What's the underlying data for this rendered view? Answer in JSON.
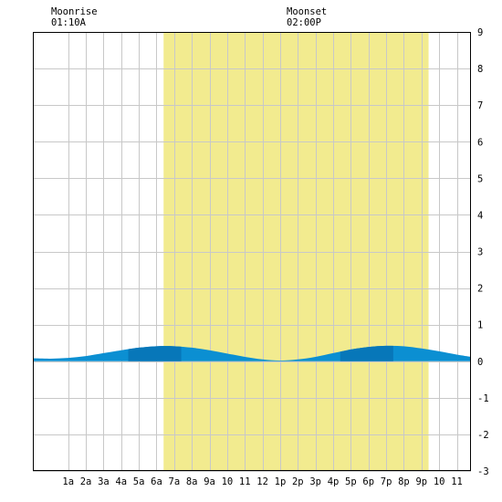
{
  "header": {
    "moonrise": {
      "label": "Moonrise",
      "time": "01:10A"
    },
    "moonset": {
      "label": "Moonset",
      "time": "02:00P"
    }
  },
  "chart_data": {
    "type": "area",
    "title": "",
    "xlabel": "",
    "ylabel": "",
    "x_range_hours": [
      -1,
      23.8
    ],
    "ylim": [
      -3,
      9
    ],
    "x_ticks": [
      {
        "hour": 1,
        "label": "1a"
      },
      {
        "hour": 2,
        "label": "2a"
      },
      {
        "hour": 3,
        "label": "3a"
      },
      {
        "hour": 4,
        "label": "4a"
      },
      {
        "hour": 5,
        "label": "5a"
      },
      {
        "hour": 6,
        "label": "6a"
      },
      {
        "hour": 7,
        "label": "7a"
      },
      {
        "hour": 8,
        "label": "8a"
      },
      {
        "hour": 9,
        "label": "9a"
      },
      {
        "hour": 10,
        "label": "10"
      },
      {
        "hour": 11,
        "label": "11"
      },
      {
        "hour": 12,
        "label": "12"
      },
      {
        "hour": 13,
        "label": "1p"
      },
      {
        "hour": 14,
        "label": "2p"
      },
      {
        "hour": 15,
        "label": "3p"
      },
      {
        "hour": 16,
        "label": "4p"
      },
      {
        "hour": 17,
        "label": "5p"
      },
      {
        "hour": 18,
        "label": "6p"
      },
      {
        "hour": 19,
        "label": "7p"
      },
      {
        "hour": 20,
        "label": "8p"
      },
      {
        "hour": 21,
        "label": "9p"
      },
      {
        "hour": 22,
        "label": "10"
      },
      {
        "hour": 23,
        "label": "11"
      }
    ],
    "y_ticks": [
      {
        "value": 9,
        "label": "9"
      },
      {
        "value": 8,
        "label": "8"
      },
      {
        "value": 7,
        "label": "7"
      },
      {
        "value": 6,
        "label": "6"
      },
      {
        "value": 5,
        "label": "5"
      },
      {
        "value": 4,
        "label": "4"
      },
      {
        "value": 3,
        "label": "3"
      },
      {
        "value": 2,
        "label": "2"
      },
      {
        "value": 1,
        "label": "1"
      },
      {
        "value": 0,
        "label": "0"
      },
      {
        "value": -1,
        "label": "-1"
      },
      {
        "value": -2,
        "label": "-2"
      },
      {
        "value": -3,
        "label": "-3"
      }
    ],
    "grid": true,
    "daylight_hours": [
      6.4,
      21.4
    ],
    "darker_band_hours": [
      [
        4.4,
        7.4
      ],
      [
        16.4,
        19.4
      ]
    ],
    "series": [
      {
        "x": [
          -1,
          0,
          1,
          2,
          3,
          4,
          5,
          6,
          7,
          8,
          9,
          10,
          11,
          12,
          13,
          14,
          15,
          16,
          17,
          18,
          19,
          20,
          21,
          22,
          23,
          23.8
        ],
        "values": [
          0.08,
          0.07,
          0.09,
          0.14,
          0.22,
          0.3,
          0.37,
          0.41,
          0.41,
          0.37,
          0.3,
          0.21,
          0.12,
          0.05,
          0.02,
          0.05,
          0.12,
          0.22,
          0.32,
          0.39,
          0.42,
          0.41,
          0.35,
          0.27,
          0.18,
          0.12
        ]
      }
    ],
    "colors": {
      "daylight": "#f2eb8f",
      "water": "#0b8fd2",
      "water_dark": "#0777b9",
      "grid": "#c8c8c8",
      "border": "#000000"
    }
  }
}
